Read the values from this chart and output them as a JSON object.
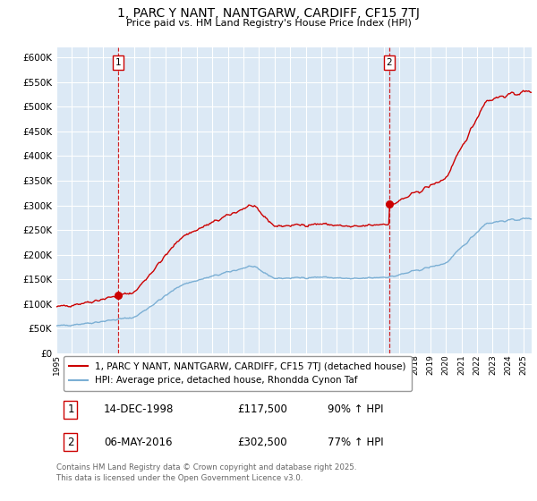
{
  "title": "1, PARC Y NANT, NANTGARW, CARDIFF, CF15 7TJ",
  "subtitle": "Price paid vs. HM Land Registry's House Price Index (HPI)",
  "bg_color": "#dce9f5",
  "grid_color": "#ffffff",
  "red_color": "#cc0000",
  "blue_color": "#7bafd4",
  "transaction1_date": "14-DEC-1998",
  "transaction1_price": 117500,
  "transaction1_hpi": "90% ↑ HPI",
  "transaction1_year": 1998.96,
  "transaction2_date": "06-MAY-2016",
  "transaction2_price": 302500,
  "transaction2_hpi": "77% ↑ HPI",
  "transaction2_year": 2016.37,
  "legend_label_red": "1, PARC Y NANT, NANTGARW, CARDIFF, CF15 7TJ (detached house)",
  "legend_label_blue": "HPI: Average price, detached house, Rhondda Cynon Taf",
  "footer": "Contains HM Land Registry data © Crown copyright and database right 2025.\nThis data is licensed under the Open Government Licence v3.0.",
  "ylim": [
    0,
    620000
  ],
  "yticks": [
    0,
    50000,
    100000,
    150000,
    200000,
    250000,
    300000,
    350000,
    400000,
    450000,
    500000,
    550000,
    600000
  ],
  "xstart": 1995.0,
  "xend": 2025.5
}
